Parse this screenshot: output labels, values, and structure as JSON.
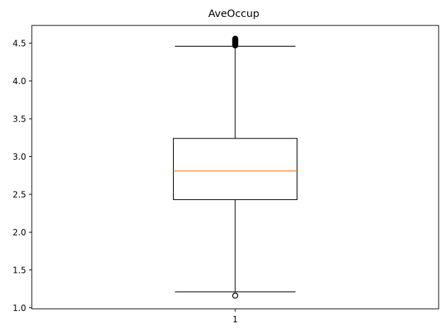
{
  "chart_data": {
    "type": "boxplot",
    "title": "AveOccup",
    "xlabel": "",
    "ylabel": "",
    "categories": [
      "1"
    ],
    "ylim": [
      0.985,
      4.735
    ],
    "yticks": [
      1.0,
      1.5,
      2.0,
      2.5,
      3.0,
      3.5,
      4.0,
      4.5
    ],
    "ytick_labels": [
      "1.0",
      "1.5",
      "2.0",
      "2.5",
      "3.0",
      "3.5",
      "4.0",
      "4.5"
    ],
    "grid": false,
    "boxes": [
      {
        "category": "1",
        "whisker_low": 1.21,
        "q1": 2.43,
        "median": 2.81,
        "q3": 3.24,
        "whisker_high": 4.46,
        "outliers": [
          1.16,
          4.47,
          4.48,
          4.49,
          4.5,
          4.51,
          4.52,
          4.53,
          4.54,
          4.55,
          4.56
        ]
      }
    ],
    "colors": {
      "box": "#000000",
      "median": "#ff7f0e",
      "axes": "#000000",
      "background": "#ffffff"
    }
  }
}
